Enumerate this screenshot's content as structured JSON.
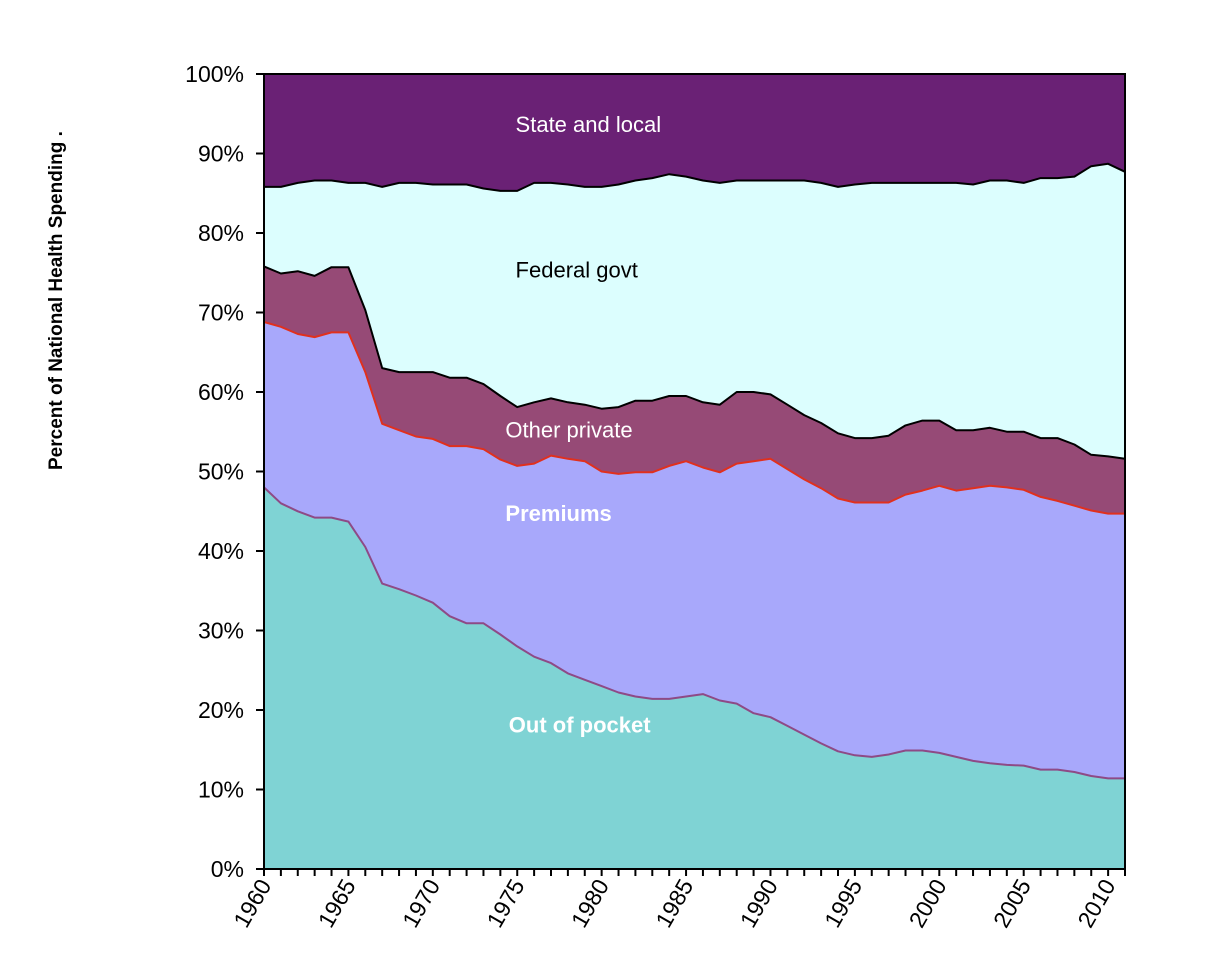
{
  "chart_data": {
    "type": "area",
    "stacked": true,
    "title": "",
    "xlabel": "",
    "ylabel": "Percent of National Health Spending .",
    "ylim": [
      0,
      100
    ],
    "xlim": [
      1960,
      2011
    ],
    "y_ticks": [
      "0%",
      "10%",
      "20%",
      "30%",
      "40%",
      "50%",
      "60%",
      "70%",
      "80%",
      "90%",
      "100%"
    ],
    "x_tick_labels": [
      "1960",
      "1965",
      "1970",
      "1975",
      "1980",
      "1985",
      "1990",
      "1995",
      "2000",
      "2005",
      "2010"
    ],
    "x": [
      1960,
      1961,
      1962,
      1963,
      1964,
      1965,
      1966,
      1967,
      1968,
      1969,
      1970,
      1971,
      1972,
      1973,
      1974,
      1975,
      1976,
      1977,
      1978,
      1979,
      1980,
      1981,
      1982,
      1983,
      1984,
      1985,
      1986,
      1987,
      1988,
      1989,
      1990,
      1991,
      1992,
      1993,
      1994,
      1995,
      1996,
      1997,
      1998,
      1999,
      2000,
      2001,
      2002,
      2003,
      2004,
      2005,
      2006,
      2007,
      2008,
      2009,
      2010,
      2011
    ],
    "series": [
      {
        "name": "Out of pocket",
        "color": "#7fd3d4",
        "line_color": "#8e4a86",
        "label_color": "#ffffff",
        "label_bold": true,
        "values": [
          48.0,
          46.0,
          45.0,
          44.2,
          44.2,
          43.7,
          40.5,
          35.9,
          35.2,
          34.4,
          33.5,
          31.8,
          30.9,
          30.9,
          29.5,
          28.0,
          26.7,
          25.9,
          24.6,
          23.8,
          23.0,
          22.2,
          21.7,
          21.4,
          21.4,
          21.7,
          22.0,
          21.2,
          20.8,
          19.6,
          19.1,
          18.0,
          16.9,
          15.8,
          14.8,
          14.3,
          14.1,
          14.4,
          14.9,
          14.9,
          14.6,
          14.1,
          13.6,
          13.3,
          13.1,
          13.0,
          12.5,
          12.5,
          12.2,
          11.7,
          11.4,
          11.4
        ]
      },
      {
        "name": "Premiums",
        "color": "#a8a8fb",
        "line_color": "#e0301e",
        "label_color": "#ffffff",
        "label_bold": true,
        "values": [
          20.8,
          22.2,
          22.3,
          22.7,
          23.3,
          23.8,
          22.0,
          20.1,
          20.0,
          20.0,
          20.6,
          21.4,
          22.3,
          21.9,
          22.0,
          22.7,
          24.3,
          26.1,
          27.0,
          27.5,
          27.0,
          27.5,
          28.2,
          28.5,
          29.3,
          29.6,
          28.5,
          28.7,
          30.2,
          31.7,
          32.5,
          32.3,
          32.1,
          32.1,
          31.8,
          31.8,
          32.0,
          31.7,
          32.2,
          32.7,
          33.6,
          33.5,
          34.3,
          34.9,
          34.9,
          34.7,
          34.3,
          33.8,
          33.5,
          33.4,
          33.3,
          33.3
        ]
      },
      {
        "name": "Other private",
        "color": "#964a76",
        "line_color": "#000000",
        "label_color": "#ffffff",
        "label_bold": false,
        "values": [
          7.0,
          6.7,
          7.9,
          7.7,
          8.2,
          8.2,
          7.8,
          7.0,
          7.3,
          8.1,
          8.4,
          8.6,
          8.6,
          8.2,
          8.0,
          7.4,
          7.7,
          7.2,
          7.1,
          7.1,
          7.9,
          8.4,
          9.0,
          9.0,
          8.8,
          8.2,
          8.2,
          8.5,
          9.0,
          8.7,
          8.1,
          8.1,
          8.1,
          8.2,
          8.2,
          8.1,
          8.1,
          8.4,
          8.7,
          8.8,
          8.2,
          7.6,
          7.3,
          7.3,
          7.0,
          7.3,
          7.4,
          7.9,
          7.7,
          7.0,
          7.2,
          6.9
        ]
      },
      {
        "name": "Federal govt",
        "color": "#dcfefe",
        "line_color": "#000000",
        "label_color": "#000000",
        "label_bold": false,
        "values": [
          10.0,
          10.9,
          11.1,
          12.0,
          10.9,
          10.6,
          16.0,
          22.8,
          23.8,
          23.8,
          23.6,
          24.3,
          24.3,
          24.6,
          25.8,
          27.2,
          27.6,
          27.1,
          27.4,
          27.4,
          27.9,
          28.0,
          27.7,
          28.0,
          27.9,
          27.6,
          27.9,
          27.9,
          26.6,
          26.6,
          26.9,
          28.2,
          29.5,
          30.2,
          31.0,
          31.9,
          32.1,
          31.8,
          30.5,
          29.9,
          29.9,
          31.1,
          30.9,
          31.1,
          31.6,
          31.3,
          32.7,
          32.7,
          33.7,
          36.3,
          36.8,
          36.1
        ]
      },
      {
        "name": "State and local",
        "color": "#6a2175",
        "line_color": "#000000",
        "label_color": "#ffffff",
        "label_bold": false,
        "values": [
          14.2,
          14.2,
          13.7,
          13.4,
          13.4,
          13.7,
          13.7,
          14.2,
          13.7,
          13.7,
          13.9,
          13.9,
          13.9,
          14.4,
          14.7,
          14.7,
          13.7,
          13.7,
          13.9,
          14.2,
          14.2,
          13.9,
          13.4,
          13.1,
          12.6,
          12.9,
          13.4,
          13.7,
          13.4,
          13.4,
          13.4,
          13.4,
          13.4,
          13.7,
          14.2,
          13.9,
          13.7,
          13.7,
          13.7,
          13.7,
          13.7,
          13.7,
          13.9,
          13.4,
          13.4,
          13.7,
          13.1,
          13.1,
          12.9,
          11.6,
          11.3,
          12.3
        ]
      }
    ],
    "annotations": [
      {
        "text": "State and local",
        "series": "State and local",
        "x": 1974.9,
        "y": 93.7
      },
      {
        "text": "Federal govt",
        "series": "Federal govt",
        "x": 1974.9,
        "y": 75.4
      },
      {
        "text": "Other private",
        "series": "Other private",
        "x": 1974.3,
        "y": 55.3
      },
      {
        "text": "Premiums",
        "series": "Premiums",
        "x": 1974.3,
        "y": 44.8
      },
      {
        "text": "Out of pocket",
        "series": "Out of pocket",
        "x": 1974.5,
        "y": 18.2
      }
    ],
    "grid": false,
    "legend": "none"
  }
}
